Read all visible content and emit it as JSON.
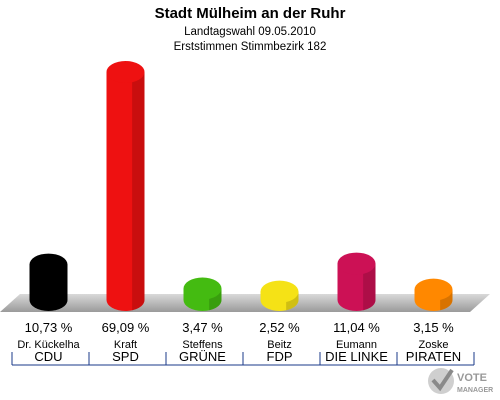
{
  "chart_data": {
    "type": "bar",
    "title": "Stadt Mülheim an der Ruhr",
    "subtitle": "Landtagswahl 09.05.2010",
    "subtitle2": "Erststimmen Stimmbezirk 182",
    "categories": [
      "CDU",
      "SPD",
      "GRÜNE",
      "FDP",
      "DIE LINKE",
      "PIRATEN"
    ],
    "candidates": [
      "Dr. Kückelha",
      "Kraft",
      "Steffens",
      "Beitz",
      "Eumann",
      "Zoske"
    ],
    "values": [
      10.73,
      69.09,
      3.47,
      2.52,
      11.04,
      3.15
    ],
    "value_labels": [
      "10,73 %",
      "69,09 %",
      "3,47 %",
      "2,52 %",
      "11,04 %",
      "3,15 %"
    ],
    "colors": [
      "#000000",
      "#ee1111",
      "#44bb11",
      "#f5e216",
      "#cc1155",
      "#ff8800"
    ],
    "ylim": [
      0,
      69.09
    ],
    "grid": false,
    "legend": "none"
  },
  "branding": {
    "logo_text_line1": "VOTE",
    "logo_text_line2": "MANAGER"
  }
}
